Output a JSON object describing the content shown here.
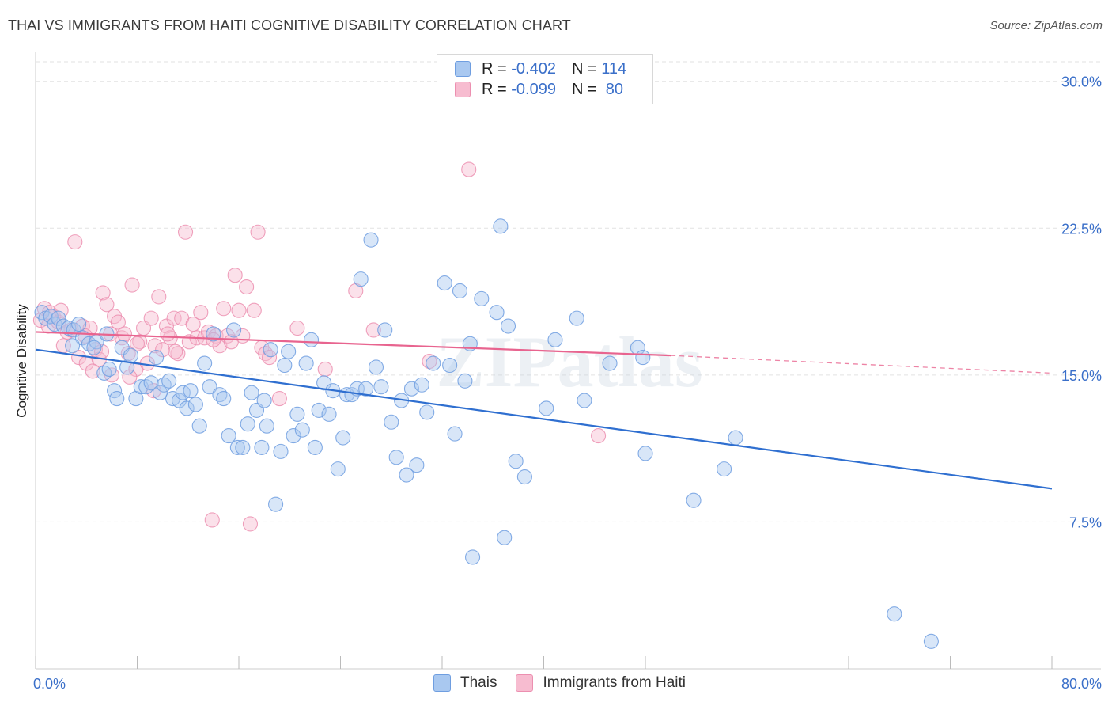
{
  "title": "THAI VS IMMIGRANTS FROM HAITI COGNITIVE DISABILITY CORRELATION CHART",
  "source": "Source: ZipAtlas.com",
  "watermark": "ZIPatlas",
  "legend_top": {
    "rows": [
      {
        "r_label": "R = ",
        "r_value": "-0.402",
        "n_label": "N = ",
        "n_value": "114"
      },
      {
        "r_label": "R = ",
        "r_value": "-0.099",
        "n_label": "N = ",
        "n_value": " 80"
      }
    ]
  },
  "colors": {
    "thai_fill": "#a9c8f0",
    "thai_stroke": "#6f9ee0",
    "thai_line": "#2f6fd0",
    "haiti_fill": "#f7bcd0",
    "haiti_stroke": "#ec8fb0",
    "haiti_line": "#e8648f",
    "axis_label": "#3a6fc9",
    "grid": "#e2e2e2"
  },
  "chart_data": {
    "type": "scatter",
    "title": "THAI VS IMMIGRANTS FROM HAITI COGNITIVE DISABILITY CORRELATION CHART",
    "xlabel": "",
    "ylabel": "Cognitive Disability",
    "xlim": [
      0,
      80
    ],
    "ylim": [
      0,
      31
    ],
    "x_tick_labels": [
      "0.0%",
      "80.0%"
    ],
    "y_ticks": [
      7.5,
      15.0,
      22.5,
      30.0
    ],
    "y_tick_labels": [
      "7.5%",
      "15.0%",
      "22.5%",
      "30.0%"
    ],
    "grid": true,
    "legend_position": "bottom",
    "series": [
      {
        "name": "Thais",
        "r": -0.402,
        "n": 114,
        "trend": {
          "x": [
            0,
            80
          ],
          "y": [
            16.3,
            9.2
          ],
          "style": "solid"
        },
        "points": [
          [
            0.5,
            18.2
          ],
          [
            0.8,
            17.9
          ],
          [
            1.2,
            18.0
          ],
          [
            1.5,
            17.6
          ],
          [
            1.8,
            17.9
          ],
          [
            2.2,
            17.5
          ],
          [
            2.6,
            17.4
          ],
          [
            3.0,
            17.3
          ],
          [
            3.4,
            17.6
          ],
          [
            3.7,
            16.9
          ],
          [
            4.2,
            16.6
          ],
          [
            4.8,
            16.7
          ],
          [
            5.4,
            15.1
          ],
          [
            5.6,
            17.1
          ],
          [
            5.8,
            15.3
          ],
          [
            6.2,
            14.2
          ],
          [
            6.4,
            13.8
          ],
          [
            6.8,
            16.4
          ],
          [
            7.2,
            15.4
          ],
          [
            7.5,
            16.0
          ],
          [
            7.9,
            13.8
          ],
          [
            8.3,
            14.4
          ],
          [
            8.7,
            14.4
          ],
          [
            9.1,
            14.6
          ],
          [
            9.5,
            15.9
          ],
          [
            9.8,
            14.1
          ],
          [
            10.1,
            14.5
          ],
          [
            10.5,
            14.7
          ],
          [
            10.8,
            13.8
          ],
          [
            11.3,
            13.7
          ],
          [
            11.6,
            14.1
          ],
          [
            11.9,
            13.3
          ],
          [
            12.2,
            14.2
          ],
          [
            12.6,
            13.5
          ],
          [
            12.9,
            12.4
          ],
          [
            13.3,
            15.6
          ],
          [
            13.7,
            14.4
          ],
          [
            14.0,
            17.1
          ],
          [
            14.5,
            14.0
          ],
          [
            14.8,
            13.8
          ],
          [
            15.2,
            11.9
          ],
          [
            15.6,
            17.3
          ],
          [
            15.9,
            11.3
          ],
          [
            16.3,
            11.3
          ],
          [
            16.7,
            12.5
          ],
          [
            17.0,
            14.1
          ],
          [
            17.4,
            13.2
          ],
          [
            17.8,
            11.3
          ],
          [
            18.2,
            12.4
          ],
          [
            18.5,
            16.3
          ],
          [
            18.9,
            8.4
          ],
          [
            19.3,
            11.1
          ],
          [
            19.6,
            15.5
          ],
          [
            19.9,
            16.2
          ],
          [
            20.3,
            11.9
          ],
          [
            20.6,
            13.0
          ],
          [
            21.0,
            12.2
          ],
          [
            21.3,
            15.6
          ],
          [
            21.7,
            16.8
          ],
          [
            22.0,
            11.3
          ],
          [
            22.3,
            13.2
          ],
          [
            22.7,
            14.6
          ],
          [
            23.1,
            13.0
          ],
          [
            23.4,
            14.2
          ],
          [
            23.8,
            10.2
          ],
          [
            24.2,
            11.8
          ],
          [
            24.5,
            14.0
          ],
          [
            24.9,
            14.0
          ],
          [
            25.3,
            14.3
          ],
          [
            25.6,
            19.9
          ],
          [
            26.0,
            14.3
          ],
          [
            26.4,
            21.9
          ],
          [
            26.8,
            15.4
          ],
          [
            27.2,
            14.4
          ],
          [
            27.5,
            17.3
          ],
          [
            28.0,
            12.6
          ],
          [
            28.4,
            10.8
          ],
          [
            28.8,
            13.7
          ],
          [
            29.2,
            9.9
          ],
          [
            29.6,
            14.3
          ],
          [
            30.0,
            10.4
          ],
          [
            30.4,
            14.5
          ],
          [
            30.8,
            13.1
          ],
          [
            31.3,
            15.6
          ],
          [
            32.2,
            19.7
          ],
          [
            32.6,
            15.5
          ],
          [
            33.0,
            12.0
          ],
          [
            33.4,
            19.3
          ],
          [
            33.8,
            14.7
          ],
          [
            34.2,
            16.6
          ],
          [
            35.1,
            18.9
          ],
          [
            36.3,
            18.2
          ],
          [
            36.6,
            22.6
          ],
          [
            36.9,
            6.7
          ],
          [
            37.2,
            17.5
          ],
          [
            37.8,
            10.6
          ],
          [
            38.5,
            9.8
          ],
          [
            40.2,
            13.3
          ],
          [
            40.9,
            16.8
          ],
          [
            42.6,
            17.9
          ],
          [
            43.2,
            13.7
          ],
          [
            45.2,
            15.6
          ],
          [
            47.4,
            16.4
          ],
          [
            47.8,
            15.9
          ],
          [
            48.0,
            11.0
          ],
          [
            51.8,
            8.6
          ],
          [
            54.2,
            10.2
          ],
          [
            55.1,
            11.8
          ],
          [
            67.6,
            2.8
          ],
          [
            70.5,
            1.4
          ],
          [
            2.9,
            16.5
          ],
          [
            4.6,
            16.4
          ],
          [
            34.4,
            5.7
          ],
          [
            18.0,
            13.7
          ]
        ]
      },
      {
        "name": "Immigrants from Haiti",
        "r": -0.099,
        "n": 80,
        "trend": {
          "x": [
            0,
            50
          ],
          "y": [
            17.2,
            16.0
          ],
          "style": "solid",
          "extension": {
            "x": [
              50,
              80
            ],
            "y": [
              16.0,
              15.1
            ],
            "style": "dashed"
          }
        },
        "points": [
          [
            0.4,
            17.8
          ],
          [
            0.7,
            18.4
          ],
          [
            1.0,
            17.5
          ],
          [
            1.4,
            18.0
          ],
          [
            1.8,
            17.7
          ],
          [
            2.2,
            16.5
          ],
          [
            2.5,
            17.2
          ],
          [
            2.8,
            17.3
          ],
          [
            3.1,
            21.8
          ],
          [
            3.4,
            15.9
          ],
          [
            3.7,
            17.5
          ],
          [
            4.0,
            15.6
          ],
          [
            4.3,
            17.4
          ],
          [
            4.7,
            16.3
          ],
          [
            5.0,
            15.8
          ],
          [
            5.3,
            19.2
          ],
          [
            5.6,
            18.6
          ],
          [
            5.9,
            17.1
          ],
          [
            6.2,
            18.0
          ],
          [
            6.5,
            17.7
          ],
          [
            6.8,
            16.9
          ],
          [
            7.0,
            17.1
          ],
          [
            7.3,
            16.1
          ],
          [
            7.6,
            19.6
          ],
          [
            7.9,
            15.3
          ],
          [
            8.2,
            16.7
          ],
          [
            8.5,
            17.4
          ],
          [
            8.8,
            15.6
          ],
          [
            9.1,
            17.9
          ],
          [
            9.4,
            16.5
          ],
          [
            9.7,
            19.0
          ],
          [
            10.0,
            16.3
          ],
          [
            10.3,
            17.5
          ],
          [
            10.6,
            16.9
          ],
          [
            10.9,
            17.9
          ],
          [
            11.2,
            16.1
          ],
          [
            11.5,
            17.9
          ],
          [
            11.8,
            22.3
          ],
          [
            12.1,
            16.7
          ],
          [
            12.4,
            17.6
          ],
          [
            12.7,
            16.9
          ],
          [
            13.0,
            18.2
          ],
          [
            13.3,
            16.9
          ],
          [
            13.6,
            17.2
          ],
          [
            13.9,
            7.6
          ],
          [
            14.2,
            17.0
          ],
          [
            14.5,
            16.5
          ],
          [
            14.8,
            18.4
          ],
          [
            15.1,
            17.0
          ],
          [
            15.4,
            16.7
          ],
          [
            15.7,
            20.1
          ],
          [
            16.0,
            18.3
          ],
          [
            16.3,
            17.0
          ],
          [
            16.6,
            19.5
          ],
          [
            16.9,
            7.4
          ],
          [
            17.2,
            18.3
          ],
          [
            17.5,
            22.3
          ],
          [
            17.8,
            16.4
          ],
          [
            18.1,
            16.1
          ],
          [
            18.4,
            15.9
          ],
          [
            19.2,
            13.8
          ],
          [
            20.6,
            17.4
          ],
          [
            22.8,
            15.3
          ],
          [
            25.2,
            19.3
          ],
          [
            26.6,
            17.3
          ],
          [
            31.0,
            15.7
          ],
          [
            34.1,
            25.5
          ],
          [
            44.3,
            11.9
          ],
          [
            6.0,
            15.0
          ],
          [
            9.3,
            14.2
          ],
          [
            3.9,
            17.0
          ],
          [
            8.0,
            16.6
          ],
          [
            11.0,
            16.2
          ],
          [
            14.0,
            16.8
          ],
          [
            5.2,
            16.2
          ],
          [
            1.1,
            18.2
          ],
          [
            2.0,
            18.3
          ],
          [
            4.5,
            15.2
          ],
          [
            7.4,
            14.9
          ],
          [
            10.4,
            17.1
          ]
        ]
      }
    ]
  },
  "legend_bottom": [
    {
      "label": "Thais"
    },
    {
      "label": "Immigrants from Haiti"
    }
  ]
}
